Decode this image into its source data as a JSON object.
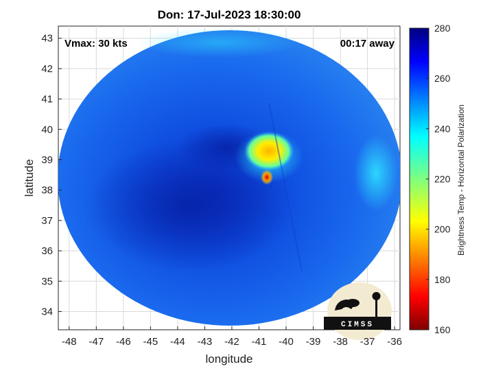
{
  "chart_data": {
    "type": "heatmap",
    "title": "Don: 17-Jul-2023 18:30:00",
    "xlabel": "longitude",
    "ylabel": "latitude",
    "xlim": [
      -48.4,
      -35.8
    ],
    "ylim": [
      33.4,
      43.4
    ],
    "xticks": [
      -48,
      -47,
      -46,
      -45,
      -44,
      -43,
      -42,
      -41,
      -40,
      -39,
      -38,
      -37,
      -36
    ],
    "yticks": [
      34,
      35,
      36,
      37,
      38,
      39,
      40,
      41,
      42,
      43
    ],
    "grid": true,
    "annotations": {
      "vmax": "Vmax: 30 kts",
      "time_offset": "00:17 away"
    },
    "colorbar": {
      "label": "Brightness Temp - Horizontal Polarization",
      "range": [
        160,
        280
      ],
      "ticks": [
        160,
        180,
        200,
        220,
        240,
        260,
        280
      ],
      "colormap": "jet"
    },
    "swath": {
      "center_lon": -42.1,
      "center_lat": 38.2,
      "background_tb": 250
    },
    "features": [
      {
        "description": "eye region",
        "lon": -41.0,
        "lat": 38.2,
        "tb": 258
      },
      {
        "description": "dense cloud band",
        "lon": -43.5,
        "lat": 37.5,
        "tb": 262
      },
      {
        "description": "warm edge",
        "lon": -36.5,
        "lat": 38.5,
        "tb": 240
      },
      {
        "description": "convective core",
        "lon": -40.6,
        "lat": 39.3,
        "tb": 205
      },
      {
        "description": "convective cell",
        "lon": -40.8,
        "lat": 38.4,
        "tb": 185
      },
      {
        "description": "convective fringe",
        "lon": -41.3,
        "lat": 38.9,
        "tb": 222
      }
    ],
    "logo": "CIMSS"
  }
}
